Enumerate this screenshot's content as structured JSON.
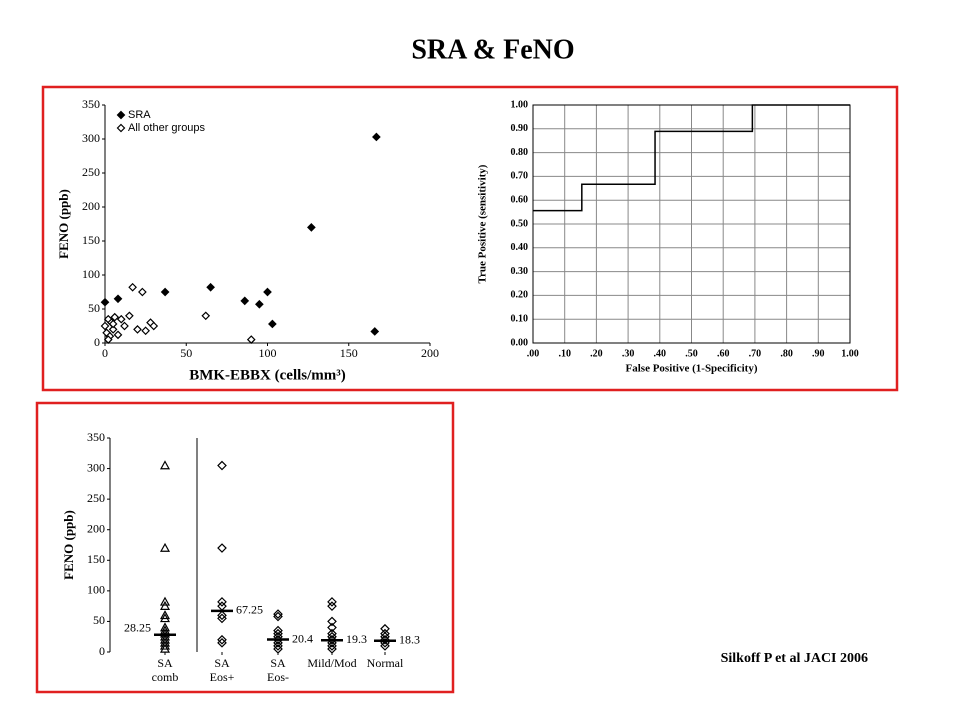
{
  "title": "SRA & FeNO",
  "citation": "Silkoff P et al JACI 2006",
  "chart_data": [
    {
      "type": "scatter",
      "x_label": "BMK-EBBX (cells/mm³)",
      "y_label": "FENO (ppb)",
      "xlim": [
        0,
        200
      ],
      "xticks": [
        0,
        50,
        100,
        150,
        200
      ],
      "ylim": [
        0,
        350
      ],
      "yticks": [
        0,
        50,
        100,
        150,
        200,
        250,
        300,
        350
      ],
      "legend": "top-left",
      "series": [
        {
          "name": "SRA",
          "color": "#000000",
          "filled": true,
          "x": [
            0,
            8,
            37,
            65,
            86,
            95,
            100,
            103,
            127,
            167,
            166
          ],
          "values": [
            60,
            65,
            75,
            82,
            62,
            57,
            75,
            28,
            170,
            303,
            17
          ]
        },
        {
          "name": "All other groups",
          "color": "#000000",
          "filled": false,
          "x": [
            0,
            1,
            2,
            3,
            4,
            5,
            6,
            8,
            10,
            12,
            15,
            17,
            20,
            23,
            25,
            28,
            30,
            62,
            90,
            2,
            5
          ],
          "values": [
            25,
            15,
            35,
            10,
            30,
            20,
            38,
            12,
            35,
            25,
            40,
            82,
            20,
            75,
            18,
            30,
            25,
            40,
            5,
            5,
            28
          ]
        }
      ]
    },
    {
      "type": "line",
      "x_label": "False Positive (1-Specificity)",
      "y_label": "True Positive (sensitivity)",
      "grid": true,
      "xlim": [
        0,
        1
      ],
      "xticks": [
        {
          "value": 0,
          "label": ".00"
        },
        {
          "value": 0.1,
          "label": ".10"
        },
        {
          "value": 0.2,
          "label": ".20"
        },
        {
          "value": 0.3,
          "label": ".30"
        },
        {
          "value": 0.4,
          "label": ".40"
        },
        {
          "value": 0.5,
          "label": ".50"
        },
        {
          "value": 0.6,
          "label": ".60"
        },
        {
          "value": 0.7,
          "label": ".70"
        },
        {
          "value": 0.8,
          "label": ".80"
        },
        {
          "value": 0.9,
          "label": ".90"
        },
        {
          "value": 1,
          "label": "1.00"
        }
      ],
      "ylim": [
        0,
        1
      ],
      "yticks": [
        {
          "value": 0,
          "label": "0.00"
        },
        {
          "value": 0.1,
          "label": "0.10"
        },
        {
          "value": 0.2,
          "label": "0.20"
        },
        {
          "value": 0.3,
          "label": "0.30"
        },
        {
          "value": 0.4,
          "label": "0.40"
        },
        {
          "value": 0.5,
          "label": "0.50"
        },
        {
          "value": 0.6,
          "label": "0.60"
        },
        {
          "value": 0.7,
          "label": "0.70"
        },
        {
          "value": 0.8,
          "label": "0.80"
        },
        {
          "value": 0.9,
          "label": "0.90"
        },
        {
          "value": 1,
          "label": "1.00"
        }
      ],
      "color": "#000000",
      "x": [
        0,
        0.154,
        0.154,
        0.385,
        0.385,
        0.692,
        0.692,
        1
      ],
      "values": [
        0.556,
        0.556,
        0.667,
        0.667,
        0.889,
        0.889,
        1,
        1
      ]
    },
    {
      "type": "strip",
      "y_label": "FENO (ppb)",
      "ylim": [
        0,
        350
      ],
      "yticks": [
        0,
        50,
        100,
        150,
        200,
        250,
        300,
        350
      ],
      "categories": [
        "SA comb",
        "SA Eos+",
        "SA Eos-",
        "Mild/Mod",
        "Normal"
      ],
      "markers": [
        "triangle",
        "diamond",
        "diamond",
        "diamond",
        "diamond"
      ],
      "color": "#000000",
      "values": [
        [
          305,
          170,
          82,
          75,
          60,
          55,
          40,
          35,
          30,
          25,
          20,
          15,
          10,
          5
        ],
        [
          305,
          170,
          82,
          75,
          60,
          55,
          20,
          15
        ],
        [
          62,
          58,
          35,
          30,
          25,
          20,
          15,
          10,
          5
        ],
        [
          82,
          75,
          50,
          40,
          30,
          25,
          20,
          15,
          10,
          5
        ],
        [
          38,
          30,
          25,
          20,
          15,
          10
        ]
      ],
      "medians": [
        28.25,
        67.25,
        20.4,
        19.3,
        18.3
      ]
    }
  ]
}
